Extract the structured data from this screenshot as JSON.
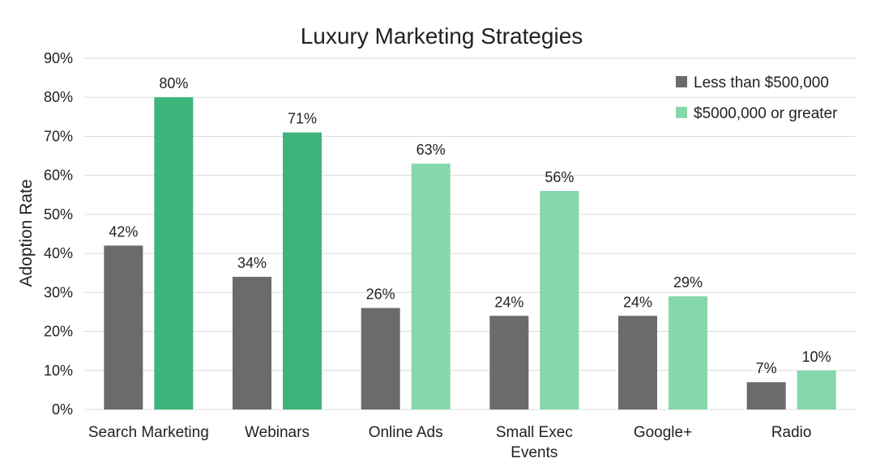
{
  "chart_data": {
    "type": "bar",
    "title": "Luxury Marketing Strategies",
    "ylabel": "Adoption Rate",
    "xlabel": "",
    "ylim": [
      0,
      90
    ],
    "yticks": [
      "0%",
      "10%",
      "20%",
      "30%",
      "40%",
      "50%",
      "60%",
      "70%",
      "80%",
      "90%"
    ],
    "grid": true,
    "legend_position": "top-right",
    "categories": [
      [
        "Search Marketing"
      ],
      [
        "Webinars"
      ],
      [
        "Online Ads"
      ],
      [
        "Small Exec",
        "Events"
      ],
      [
        "Google+"
      ],
      [
        "Radio"
      ]
    ],
    "series": [
      {
        "name": "Less than $500,000",
        "values": [
          42,
          34,
          26,
          24,
          24,
          7
        ],
        "labels": [
          "42%",
          "34%",
          "26%",
          "24%",
          "24%",
          "7%"
        ],
        "colors": [
          "#6b6b6b",
          "#6b6b6b",
          "#6b6b6b",
          "#6b6b6b",
          "#6b6b6b",
          "#6b6b6b"
        ]
      },
      {
        "name": "$5000,000 or greater",
        "values": [
          80,
          71,
          63,
          56,
          29,
          10
        ],
        "labels": [
          "80%",
          "71%",
          "63%",
          "56%",
          "29%",
          "10%"
        ],
        "colors": [
          "#3db479",
          "#3db479",
          "#86d7ab",
          "#86d7ab",
          "#86d7ab",
          "#86d7ab"
        ]
      }
    ],
    "legend_colors": [
      "#6b6b6b",
      "#86d7ab"
    ],
    "grid_color": "#dcdcdc"
  }
}
